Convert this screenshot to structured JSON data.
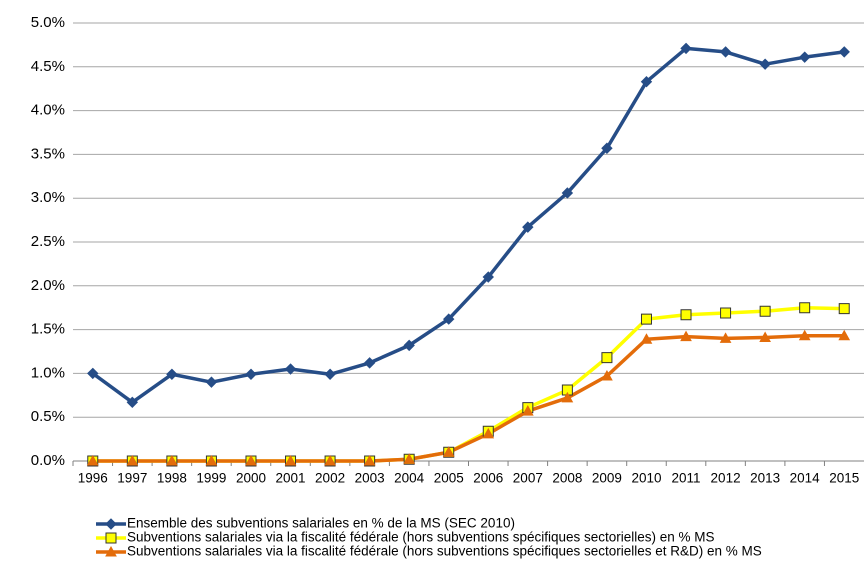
{
  "chart_data": {
    "type": "line",
    "categories": [
      "1996",
      "1997",
      "1998",
      "1999",
      "2000",
      "2001",
      "2002",
      "2003",
      "2004",
      "2005",
      "2006",
      "2007",
      "2008",
      "2009",
      "2010",
      "2011",
      "2012",
      "2013",
      "2014",
      "2015"
    ],
    "series": [
      {
        "name": "Ensemble des subventions salariales en % de la MS (SEC 2010)",
        "color": "#264d87",
        "marker": "diamond",
        "values": [
          1.0,
          0.67,
          0.99,
          0.9,
          0.99,
          1.05,
          0.99,
          1.12,
          1.32,
          1.62,
          2.1,
          2.67,
          3.06,
          3.57,
          4.33,
          4.71,
          4.67,
          4.53,
          4.61,
          4.67
        ]
      },
      {
        "name": "Subventions salariales via la fiscalité fédérale (hors subventions spécifiques sectorielles) en % MS",
        "color": "#ffff00",
        "marker": "square",
        "values": [
          0,
          0,
          0,
          0,
          0,
          0,
          0,
          0,
          0.02,
          0.1,
          0.34,
          0.61,
          0.81,
          1.18,
          1.62,
          1.67,
          1.69,
          1.71,
          1.75,
          1.74
        ]
      },
      {
        "name": "Subventions salariales via la fiscalité fédérale (hors subventions spécifiques sectorielles et R&D) en % MS",
        "color": "#e36c0a",
        "marker": "triangle",
        "values": [
          0,
          0,
          0,
          0,
          0,
          0,
          0,
          0,
          0.02,
          0.1,
          0.31,
          0.57,
          0.72,
          0.97,
          1.39,
          1.42,
          1.4,
          1.41,
          1.43,
          1.43
        ]
      }
    ],
    "ylim": [
      0,
      5
    ],
    "yticks": [
      {
        "value": 0,
        "label": "0.0%"
      },
      {
        "value": 0.5,
        "label": "0.5%"
      },
      {
        "value": 1,
        "label": "1.0%"
      },
      {
        "value": 1.5,
        "label": "1.5%"
      },
      {
        "value": 2,
        "label": "2.0%"
      },
      {
        "value": 2.5,
        "label": "2.5%"
      },
      {
        "value": 3,
        "label": "3.0%"
      },
      {
        "value": 3.5,
        "label": "3.5%"
      },
      {
        "value": 4,
        "label": "4.0%"
      },
      {
        "value": 4.5,
        "label": "4.5%"
      },
      {
        "value": 5,
        "label": "5.0%"
      }
    ],
    "grid": true,
    "legend": "bottom"
  }
}
